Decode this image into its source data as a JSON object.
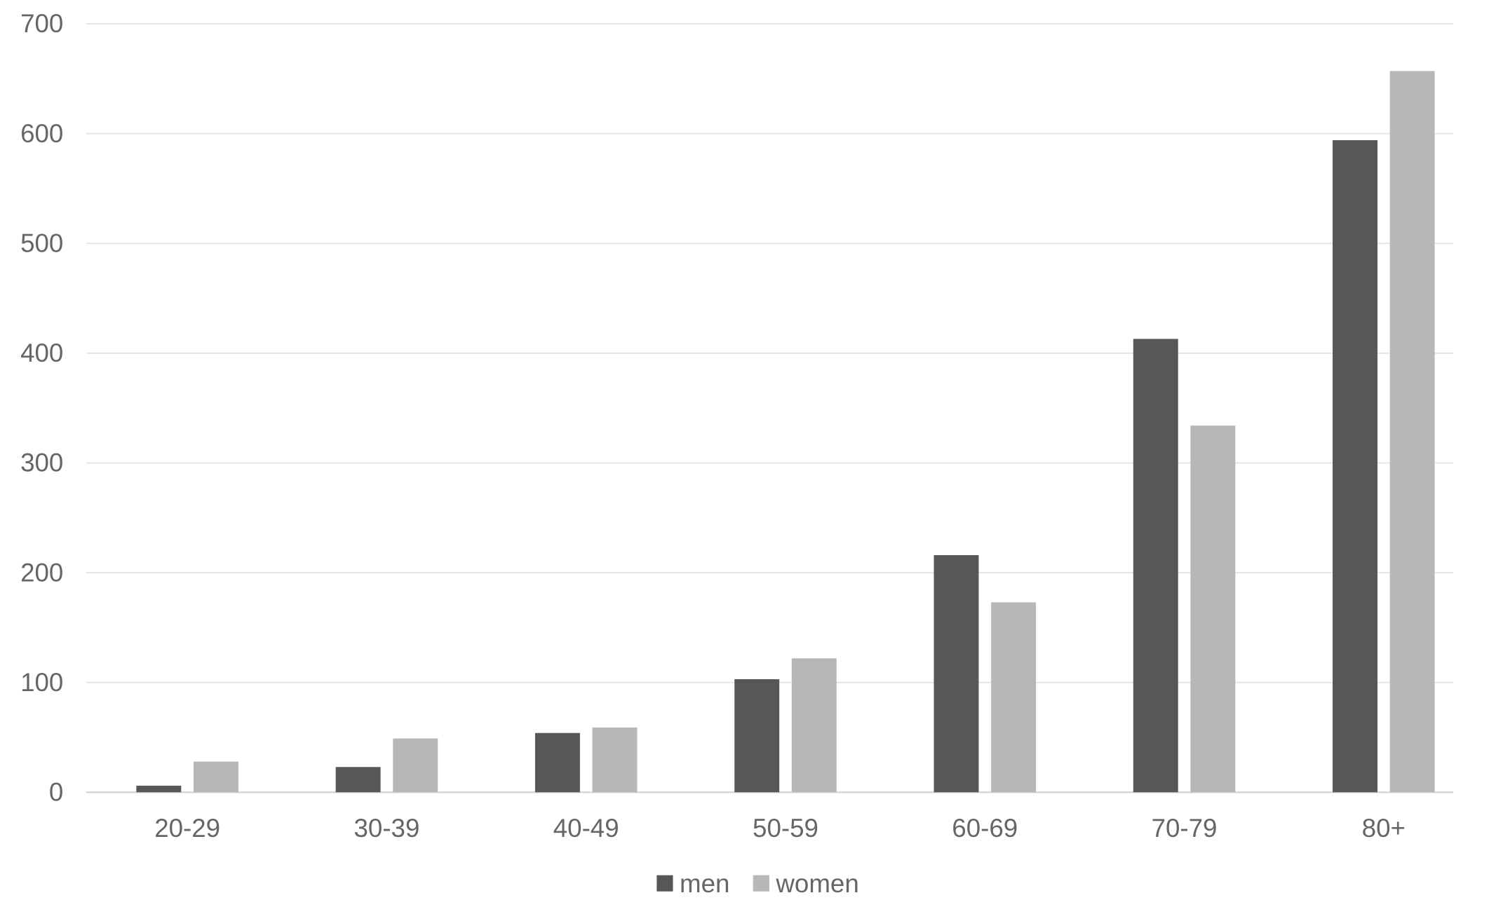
{
  "chart_data": {
    "type": "bar",
    "title": "",
    "xlabel": "",
    "ylabel": "",
    "categories": [
      "20-29",
      "30-39",
      "40-49",
      "50-59",
      "60-69",
      "70-79",
      "80+"
    ],
    "series": [
      {
        "name": "men",
        "color": "#575757",
        "values": [
          6,
          23,
          54,
          103,
          216,
          413,
          594
        ]
      },
      {
        "name": "women",
        "color": "#b7b7b7",
        "values": [
          28,
          49,
          59,
          122,
          173,
          334,
          657
        ]
      }
    ],
    "ylim": [
      0,
      700
    ],
    "yticks": [
      0,
      100,
      200,
      300,
      400,
      500,
      600,
      700
    ],
    "grid": true,
    "legend": "bottom"
  }
}
